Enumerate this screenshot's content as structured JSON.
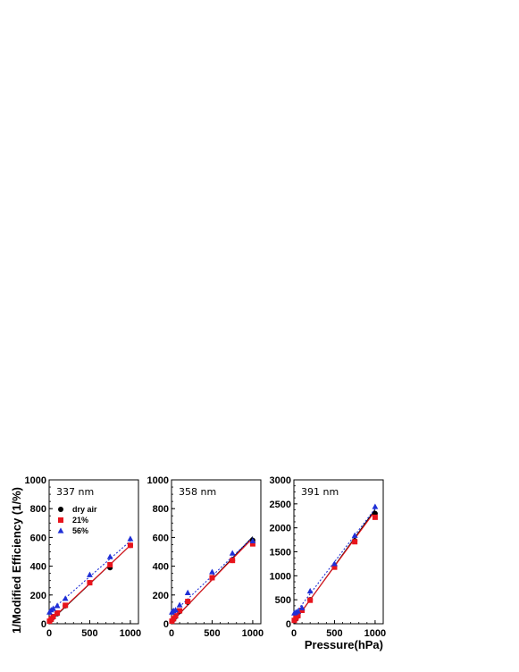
{
  "ylabel": "1/Modified Efficiency (1/%)",
  "xlabel": "Pressure(hPa)",
  "colors": {
    "dry": "#000000",
    "p21": "#e8141c",
    "p56": "#1f2fd6"
  },
  "legend": [
    {
      "key": "dry",
      "label": "dry air",
      "marker": "circle"
    },
    {
      "key": "p21",
      "label": "21%",
      "marker": "square"
    },
    {
      "key": "p56",
      "label": "56%",
      "marker": "triangle"
    }
  ],
  "chart_data": [
    {
      "type": "scatter",
      "label": "337 nm",
      "xlim": [
        0,
        1100
      ],
      "ylim": [
        0,
        1000
      ],
      "xticks": [
        0,
        500,
        1000
      ],
      "xtick_labels": [
        "0",
        "500",
        "1000"
      ],
      "yticks": [
        0,
        200,
        400,
        600,
        800,
        1000
      ],
      "ytick_labels": [
        "0",
        "200",
        "400",
        "600",
        "800",
        "1000"
      ],
      "series": [
        {
          "key": "dry",
          "name": "dry air",
          "x": [
            5,
            25,
            50,
            100,
            200,
            500,
            750,
            1000
          ],
          "y": [
            15,
            28,
            45,
            70,
            125,
            285,
            390,
            545
          ],
          "fit": [
            [
              0,
              10
            ],
            [
              1000,
              545
            ]
          ],
          "fit_style": "solid"
        },
        {
          "key": "p21",
          "name": "21%",
          "x": [
            5,
            25,
            50,
            100,
            200,
            500,
            750,
            1000
          ],
          "y": [
            18,
            32,
            50,
            75,
            128,
            285,
            410,
            545
          ],
          "fit": [
            [
              0,
              15
            ],
            [
              1000,
              545
            ]
          ],
          "fit_style": "solid"
        },
        {
          "key": "p56",
          "name": "56%",
          "x": [
            5,
            25,
            50,
            100,
            200,
            500,
            750,
            1000
          ],
          "y": [
            80,
            95,
            105,
            125,
            175,
            340,
            465,
            590
          ],
          "fit": [
            [
              0,
              80
            ],
            [
              1000,
              575
            ]
          ],
          "fit_style": "dotted"
        }
      ]
    },
    {
      "type": "scatter",
      "label": "358 nm",
      "xlim": [
        0,
        1100
      ],
      "ylim": [
        0,
        1000
      ],
      "xticks": [
        0,
        500,
        1000
      ],
      "xtick_labels": [
        "0",
        "500",
        "1000"
      ],
      "yticks": [
        0,
        200,
        400,
        600,
        800,
        1000
      ],
      "ytick_labels": [
        "0",
        "200",
        "400",
        "600",
        "800",
        "1000"
      ],
      "series": [
        {
          "key": "dry",
          "name": "dry air",
          "x": [
            5,
            25,
            50,
            100,
            200,
            500,
            750,
            1000
          ],
          "y": [
            15,
            30,
            50,
            85,
            150,
            320,
            440,
            580
          ],
          "fit": [
            [
              0,
              10
            ],
            [
              1000,
              605
            ]
          ],
          "fit_style": "solid"
        },
        {
          "key": "p21",
          "name": "21%",
          "x": [
            5,
            25,
            50,
            100,
            200,
            500,
            750,
            1000
          ],
          "y": [
            18,
            35,
            55,
            90,
            155,
            320,
            440,
            555
          ],
          "fit": [
            [
              0,
              15
            ],
            [
              1000,
              595
            ]
          ],
          "fit_style": "solid"
        },
        {
          "key": "p56",
          "name": "56%",
          "x": [
            5,
            25,
            50,
            100,
            200,
            500,
            750,
            1000
          ],
          "y": [
            80,
            90,
            95,
            130,
            215,
            360,
            490,
            575
          ],
          "fit": [
            [
              0,
              65
            ],
            [
              1000,
              600
            ]
          ],
          "fit_style": "dotted"
        }
      ]
    },
    {
      "type": "scatter",
      "label": "391 nm",
      "xlim": [
        0,
        1100
      ],
      "ylim": [
        0,
        3000
      ],
      "xticks": [
        0,
        500,
        1000
      ],
      "xtick_labels": [
        "0",
        "500",
        "1000"
      ],
      "yticks": [
        0,
        500,
        1000,
        1500,
        2000,
        2500,
        3000
      ],
      "ytick_labels": [
        "0",
        "500",
        "1000",
        "1500",
        "2000",
        "2500",
        "3000"
      ],
      "series": [
        {
          "key": "dry",
          "name": "dry air",
          "x": [
            5,
            25,
            50,
            100,
            200,
            500,
            750,
            1000
          ],
          "y": [
            60,
            100,
            160,
            280,
            500,
            1190,
            1730,
            2300
          ],
          "fit": [
            [
              0,
              30
            ],
            [
              1000,
              2380
            ]
          ],
          "fit_style": "solid"
        },
        {
          "key": "p21",
          "name": "21%",
          "x": [
            5,
            25,
            50,
            100,
            200,
            500,
            750,
            1000
          ],
          "y": [
            70,
            120,
            170,
            280,
            490,
            1180,
            1710,
            2220
          ],
          "fit": [
            [
              0,
              40
            ],
            [
              1000,
              2350
            ]
          ],
          "fit_style": "solid"
        },
        {
          "key": "p56",
          "name": "56%",
          "x": [
            5,
            25,
            50,
            100,
            200,
            500,
            750,
            1000
          ],
          "y": [
            220,
            240,
            260,
            330,
            680,
            1250,
            1840,
            2440
          ],
          "fit": [
            [
              0,
              180
            ],
            [
              1000,
              2400
            ]
          ],
          "fit_style": "dotted"
        }
      ]
    }
  ]
}
